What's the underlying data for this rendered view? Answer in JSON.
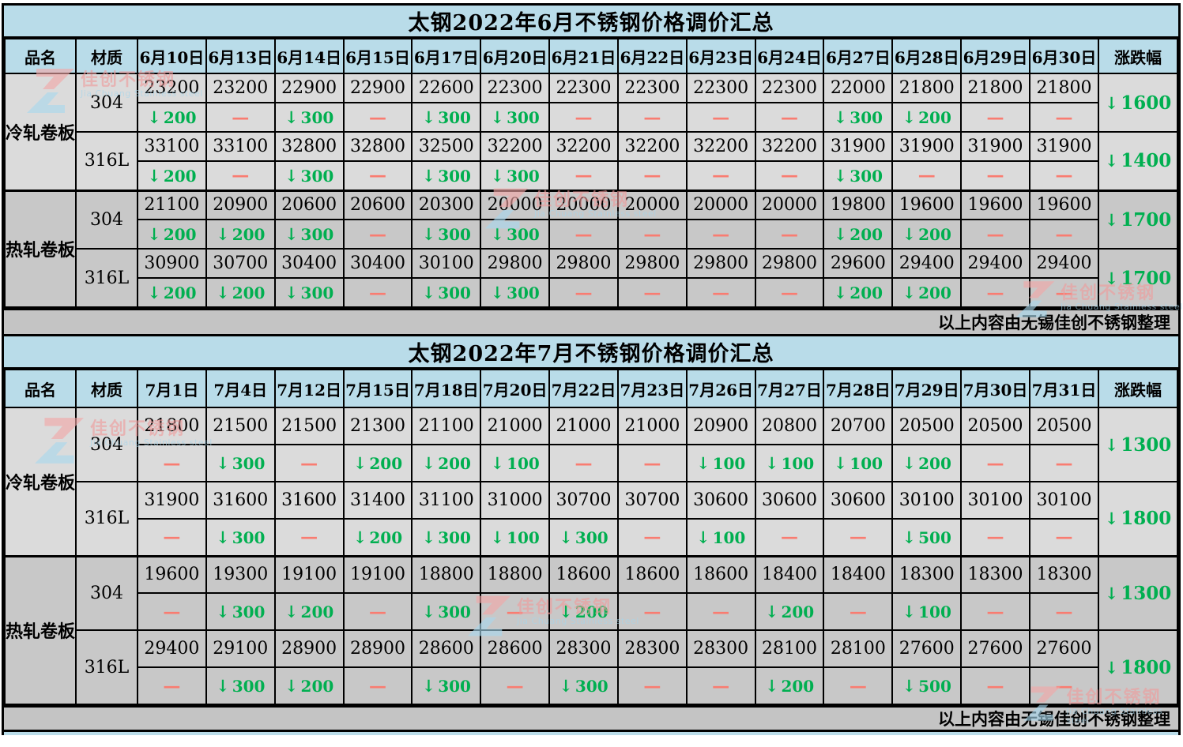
{
  "colors": {
    "header_blue": "#b9dce9",
    "cold_row_gray": "#dbdbdb",
    "hot_row_gray": "#c8c8c8",
    "footer_gray": "#c4c4c4",
    "decrease_green": "#00af50",
    "flat_red": "#f97c71"
  },
  "watermark": {
    "title": "佳创不锈钢",
    "subtitle": "Jia Chuang Stainless steel"
  },
  "tables": [
    {
      "title": "太钢2022年6月不锈钢价格调价汇总",
      "footer": "以上内容由无锡佳创不锈钢整理",
      "col_headers": [
        "品名",
        "材质",
        "6月10日",
        "6月13日",
        "6月14日",
        "6月15日",
        "6月17日",
        "6月20日",
        "6月21日",
        "6月22日",
        "6月23日",
        "6月24日",
        "6月27日",
        "6月28日",
        "6月29日",
        "6月30日",
        "涨跌幅"
      ],
      "groups": [
        {
          "product": "冷轧卷板",
          "materials": [
            {
              "grade": "304",
              "prices": [
                "23200",
                "23200",
                "22900",
                "22900",
                "22600",
                "22300",
                "22300",
                "22300",
                "22300",
                "22300",
                "22000",
                "21800",
                "21800",
                "21800"
              ],
              "changes": [
                "↓200",
                "—",
                "↓300",
                "—",
                "↓300",
                "↓300",
                "—",
                "—",
                "—",
                "—",
                "↓300",
                "↓200",
                "—",
                "—"
              ],
              "total": "↓1600"
            },
            {
              "grade": "316L",
              "prices": [
                "33100",
                "33100",
                "32800",
                "32800",
                "32500",
                "32200",
                "32200",
                "32200",
                "32200",
                "32200",
                "31900",
                "31900",
                "31900",
                "31900"
              ],
              "changes": [
                "↓200",
                "—",
                "↓300",
                "—",
                "↓300",
                "↓300",
                "—",
                "—",
                "—",
                "—",
                "↓300",
                "—",
                "—",
                "—"
              ],
              "total": "↓1400"
            }
          ]
        },
        {
          "product": "热轧卷板",
          "materials": [
            {
              "grade": "304",
              "prices": [
                "21100",
                "20900",
                "20600",
                "20600",
                "20300",
                "20000",
                "20000",
                "20000",
                "20000",
                "20000",
                "19800",
                "19600",
                "19600",
                "19600"
              ],
              "changes": [
                "↓200",
                "↓200",
                "↓300",
                "—",
                "↓300",
                "↓300",
                "—",
                "—",
                "—",
                "—",
                "↓200",
                "↓200",
                "—",
                "—"
              ],
              "total": "↓1700"
            },
            {
              "grade": "316L",
              "prices": [
                "30900",
                "30700",
                "30400",
                "30400",
                "30100",
                "29800",
                "29800",
                "29800",
                "29800",
                "29800",
                "29600",
                "29400",
                "29400",
                "29400"
              ],
              "changes": [
                "↓200",
                "↓200",
                "↓300",
                "—",
                "↓300",
                "↓300",
                "—",
                "—",
                "—",
                "—",
                "↓200",
                "↓200",
                "—",
                "—"
              ],
              "total": "↓1700"
            }
          ]
        }
      ]
    },
    {
      "title": "太钢2022年7月不锈钢价格调价汇总",
      "footer": "以上内容由无锡佳创不锈钢整理",
      "col_headers": [
        "品名",
        "材质",
        "7月1日",
        "7月4日",
        "7月12日",
        "7月15日",
        "7月18日",
        "7月20日",
        "7月22日",
        "7月23日",
        "7月26日",
        "7月27日",
        "7月28日",
        "7月29日",
        "7月30日",
        "7月31日",
        "涨跌幅"
      ],
      "groups": [
        {
          "product": "冷轧卷板",
          "materials": [
            {
              "grade": "304",
              "prices": [
                "21800",
                "21500",
                "21500",
                "21300",
                "21100",
                "21000",
                "21000",
                "21000",
                "20900",
                "20800",
                "20700",
                "20500",
                "20500",
                "20500"
              ],
              "changes": [
                "—",
                "↓300",
                "—",
                "↓200",
                "↓200",
                "↓100",
                "—",
                "—",
                "↓100",
                "↓100",
                "↓100",
                "↓200",
                "—",
                "—"
              ],
              "total": "↓1300"
            },
            {
              "grade": "316L",
              "prices": [
                "31900",
                "31600",
                "31600",
                "31400",
                "31100",
                "31000",
                "30700",
                "30700",
                "30600",
                "30600",
                "30600",
                "30100",
                "30100",
                "30100"
              ],
              "changes": [
                "—",
                "↓300",
                "—",
                "↓200",
                "↓300",
                "↓100",
                "↓300",
                "—",
                "↓100",
                "—",
                "—",
                "↓500",
                "—",
                "—"
              ],
              "total": "↓1800"
            }
          ]
        },
        {
          "product": "热轧卷板",
          "materials": [
            {
              "grade": "304",
              "prices": [
                "19600",
                "19300",
                "19100",
                "19100",
                "18800",
                "18800",
                "18600",
                "18600",
                "18600",
                "18400",
                "18400",
                "18300",
                "18300",
                "18300"
              ],
              "changes": [
                "—",
                "↓300",
                "↓200",
                "—",
                "↓300",
                "—",
                "↓200",
                "—",
                "—",
                "↓200",
                "—",
                "↓100",
                "—",
                "—"
              ],
              "total": "↓1300"
            },
            {
              "grade": "316L",
              "prices": [
                "29400",
                "29100",
                "28900",
                "28900",
                "28600",
                "28600",
                "28300",
                "28300",
                "28300",
                "28100",
                "28100",
                "27600",
                "27600",
                "27600"
              ],
              "changes": [
                "—",
                "↓300",
                "↓200",
                "—",
                "↓300",
                "—",
                "↓300",
                "—",
                "—",
                "↓200",
                "—",
                "↓500",
                "—",
                "—"
              ],
              "total": "↓1800"
            }
          ]
        }
      ]
    }
  ]
}
